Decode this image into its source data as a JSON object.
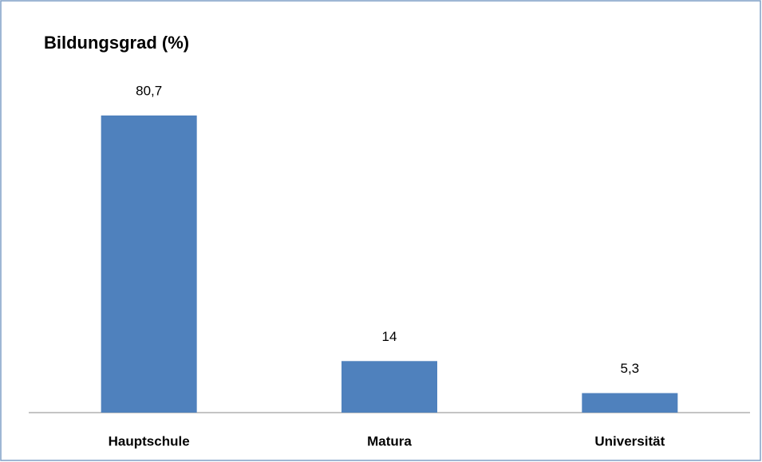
{
  "chart_data": {
    "type": "bar",
    "title": "Bildungsgrad (%)",
    "categories": [
      "Hauptschule",
      "Matura",
      "Universität"
    ],
    "values": [
      80.7,
      14,
      5.3
    ],
    "value_labels": [
      "80,7",
      "14",
      "5,3"
    ],
    "color": "#4f81bd"
  }
}
